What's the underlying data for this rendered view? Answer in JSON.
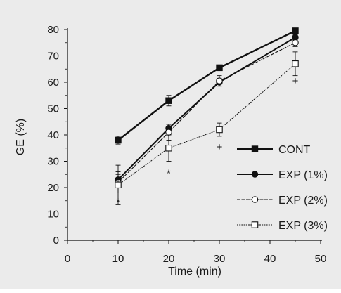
{
  "colors": {
    "panel": "#ebebeb",
    "ink": "#111111"
  },
  "chart_data": {
    "type": "line",
    "title": "",
    "xlabel": "Time (min)",
    "ylabel": "GE (%)",
    "xlim": [
      0,
      50
    ],
    "ylim": [
      0,
      80
    ],
    "xticks": [
      0,
      10,
      20,
      30,
      40,
      50
    ],
    "yticks": [
      0,
      10,
      20,
      30,
      40,
      50,
      60,
      70,
      80
    ],
    "grid": false,
    "legend_position": "bottom-right",
    "x": [
      10,
      20,
      30,
      45
    ],
    "series": [
      {
        "name": "CONT",
        "marker": "filled-square",
        "values": [
          38,
          53,
          65.5,
          79.5
        ],
        "errors": [
          1.5,
          2,
          1,
          1
        ]
      },
      {
        "name": "EXP (1%)",
        "marker": "filled-circle",
        "values": [
          23,
          42.5,
          60,
          77
        ],
        "errors": [
          2,
          1.5,
          1.5,
          1
        ]
      },
      {
        "name": "EXP (2%)",
        "marker": "open-circle",
        "values": [
          22,
          41,
          60.5,
          75
        ],
        "errors": [
          4,
          3,
          2,
          1.5
        ]
      },
      {
        "name": "EXP (3%)",
        "marker": "open-square",
        "values": [
          21,
          35,
          42,
          67
        ],
        "errors": [
          7.5,
          5,
          2.5,
          4.5
        ]
      }
    ],
    "annotations": [
      {
        "x": 10,
        "y": 14.5,
        "text": "*"
      },
      {
        "x": 20,
        "y": 25.5,
        "text": "*"
      },
      {
        "x": 30,
        "y": 35.5,
        "text": "+"
      },
      {
        "x": 45,
        "y": 60.5,
        "text": "+"
      }
    ]
  }
}
